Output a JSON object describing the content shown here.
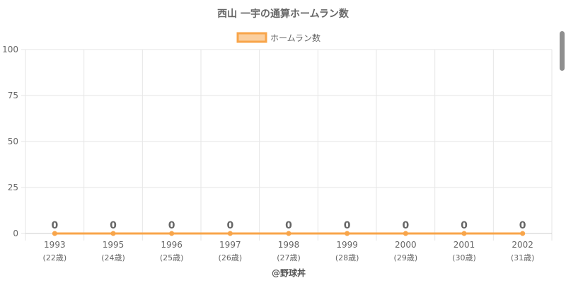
{
  "chart_data": {
    "type": "line",
    "title": "西山 一宇の通算ホームラン数",
    "categories": [
      "1993",
      "1995",
      "1996",
      "1997",
      "1998",
      "1999",
      "2000",
      "2001",
      "2002"
    ],
    "category_sublabels": [
      "(22歳)",
      "(24歳)",
      "(25歳)",
      "(26歳)",
      "(27歳)",
      "(28歳)",
      "(29歳)",
      "(30歳)",
      "(31歳)"
    ],
    "series": [
      {
        "name": "ホームラン数",
        "values": [
          0,
          0,
          0,
          0,
          0,
          0,
          0,
          0,
          0
        ],
        "color": "#f8a54a"
      }
    ],
    "ylim": [
      0,
      100
    ],
    "yticks": [
      0,
      25,
      50,
      75,
      100
    ],
    "grid": true,
    "legend_position": "top",
    "data_labels": true
  },
  "watermark": "@野球丼",
  "colors": {
    "line": "#f8a54a",
    "legend_fill": "#fbcf9f",
    "grid": "#e6e6e6",
    "text": "#666666"
  }
}
